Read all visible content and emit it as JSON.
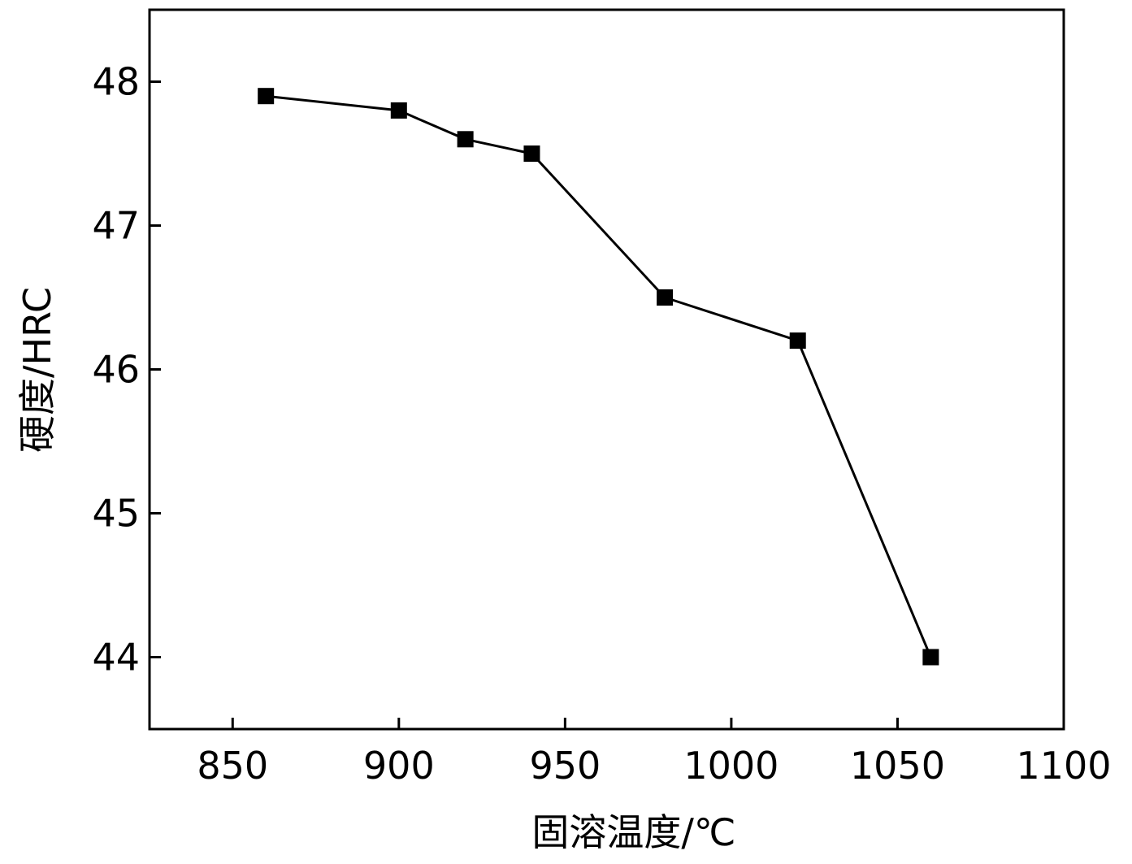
{
  "chart_data": {
    "type": "line",
    "title": "",
    "xlabel": "固溶温度/℃",
    "ylabel": "硬度/HRC",
    "xlim": [
      825,
      1100
    ],
    "ylim": [
      43.5,
      48.5
    ],
    "xticks": [
      850,
      900,
      950,
      1000,
      1050,
      1100
    ],
    "yticks": [
      44,
      45,
      46,
      47,
      48
    ],
    "grid": false,
    "marker": "square",
    "line_color": "#000000",
    "series": [
      {
        "x": [
          860,
          900,
          920,
          940,
          980,
          1020,
          1060
        ],
        "y": [
          47.9,
          47.8,
          47.6,
          47.5,
          46.5,
          46.2,
          44.0
        ]
      }
    ]
  }
}
